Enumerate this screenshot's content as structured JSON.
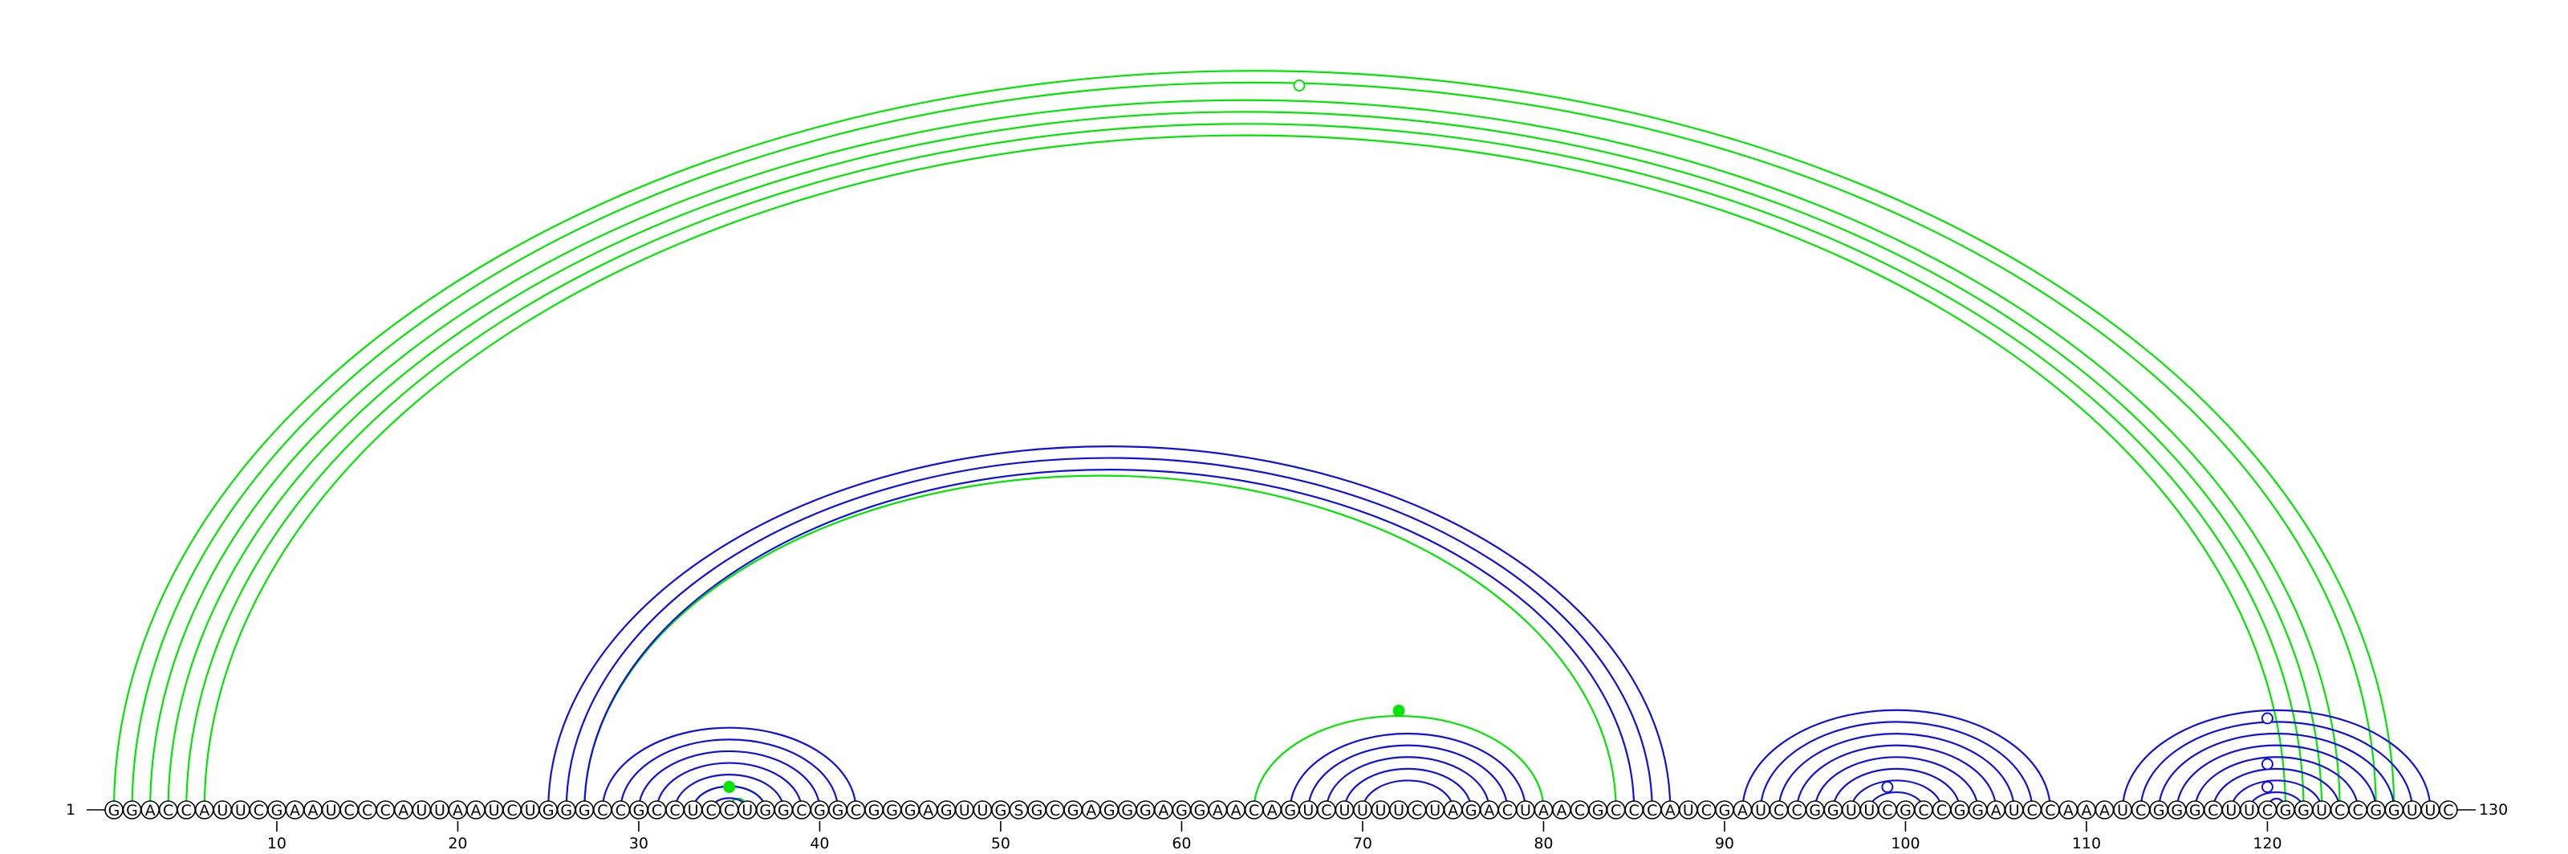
{
  "sequence": "GGACCAUUCGAAUCCCAUUAAUCUGGGCCGCCUCCUGGCGGCGGGAGUUGSGCGAGGGAGGAACAGUCUUUUCUAGACUAACGCCCAUCGAUCCGGUUCGCCGGAUCCAAAUCGGGCUUCGGUCCGGUUC",
  "start_label": "1",
  "end_label": "130",
  "ticks": [
    "10",
    "20",
    "30",
    "40",
    "50",
    "60",
    "70",
    "80",
    "90",
    "100",
    "110",
    "120"
  ],
  "colors": {
    "green": "#00e600",
    "blue": "#1010e0",
    "backbone": "#000000"
  },
  "arcs": [
    {
      "color": "green",
      "pairs": [
        [
          1,
          127
        ],
        [
          2,
          126
        ],
        [
          3,
          124
        ],
        [
          4,
          123
        ],
        [
          5,
          122
        ],
        [
          6,
          121
        ],
        [
          27,
          84
        ],
        [
          33,
          37
        ],
        [
          35,
          36
        ],
        [
          64,
          80
        ]
      ]
    },
    {
      "color": "blue",
      "pairs": [
        [
          25,
          87
        ],
        [
          26,
          86
        ],
        [
          27,
          85
        ],
        [
          28,
          42
        ],
        [
          29,
          41
        ],
        [
          30,
          40
        ],
        [
          31,
          39
        ],
        [
          32,
          38
        ],
        [
          33,
          37
        ],
        [
          34,
          36
        ],
        [
          66,
          79
        ],
        [
          67,
          78
        ],
        [
          68,
          77
        ],
        [
          69,
          76
        ],
        [
          70,
          75
        ],
        [
          91,
          108
        ],
        [
          92,
          107
        ],
        [
          93,
          106
        ],
        [
          94,
          105
        ],
        [
          95,
          104
        ],
        [
          96,
          103
        ],
        [
          97,
          102
        ],
        [
          98,
          101
        ],
        [
          112,
          129
        ],
        [
          113,
          128
        ],
        [
          114,
          127
        ],
        [
          115,
          126
        ],
        [
          116,
          125
        ],
        [
          117,
          124
        ],
        [
          118,
          123
        ],
        [
          119,
          122
        ],
        [
          120,
          121
        ]
      ]
    }
  ],
  "markers": [
    {
      "pos": 66.5,
      "level": 0.95,
      "color": "green",
      "filled": false
    },
    {
      "pos": 72.0,
      "level": 0.13,
      "color": "green",
      "filled": true
    },
    {
      "pos": 35.0,
      "level": 0.03,
      "color": "green",
      "filled": true
    },
    {
      "pos": 99.0,
      "level": 0.03,
      "color": "blue",
      "filled": false
    },
    {
      "pos": 120.0,
      "level": 0.12,
      "color": "blue",
      "filled": false
    },
    {
      "pos": 120.0,
      "level": 0.06,
      "color": "blue",
      "filled": false
    },
    {
      "pos": 120.0,
      "level": 0.03,
      "color": "blue",
      "filled": false
    }
  ]
}
